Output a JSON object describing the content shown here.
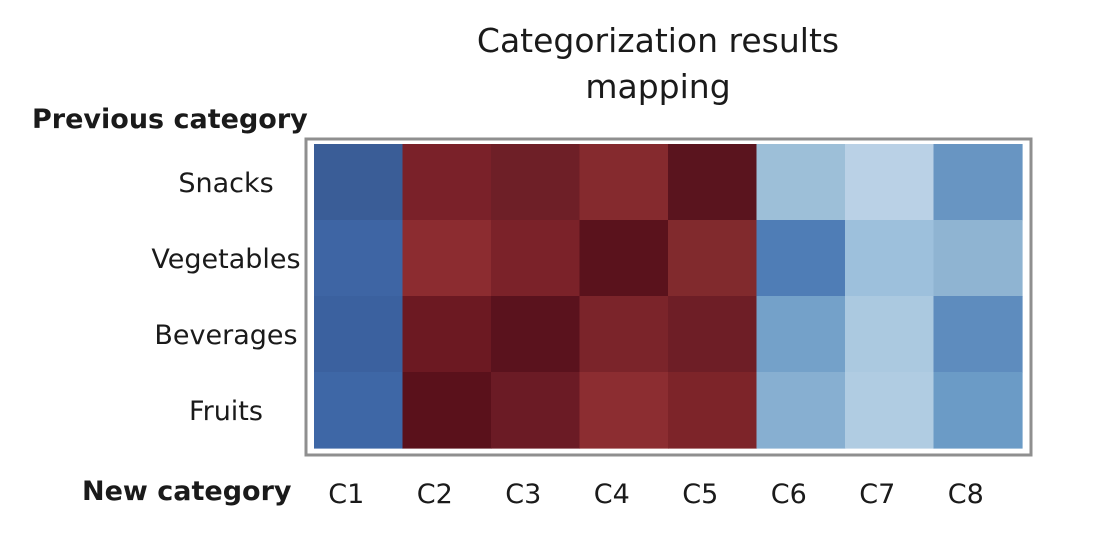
{
  "chart_data": {
    "type": "heatmap",
    "title": [
      "Categorization results",
      "mapping"
    ],
    "ylabel": "Previous category",
    "xlabel": "New category",
    "rows": [
      "Snacks",
      "Vegetables",
      "Beverages",
      "Fruits"
    ],
    "columns": [
      "C1",
      "C2",
      "C3",
      "C4",
      "C5",
      "C6",
      "C7",
      "C8"
    ],
    "colors": [
      [
        "#3a5d97",
        "#7a2129",
        "#6e1f27",
        "#852a2e",
        "#5a141e",
        "#9dbfd8",
        "#bad1e6",
        "#6895c2"
      ],
      [
        "#3e65a4",
        "#8c2c30",
        "#7b2229",
        "#5a121c",
        "#812a2d",
        "#4f7db6",
        "#9dc0dc",
        "#8fb4d2"
      ],
      [
        "#3b619f",
        "#6c1922",
        "#5a121d",
        "#7b242a",
        "#6e1e26",
        "#74a1c9",
        "#abc9e0",
        "#5e8cbe"
      ],
      [
        "#3e67a6",
        "#5a111b",
        "#6b1b25",
        "#8c2d31",
        "#7d2429",
        "#87afd1",
        "#b0cce2",
        "#6b9bc6"
      ]
    ],
    "colormap": "diverging red-blue"
  }
}
